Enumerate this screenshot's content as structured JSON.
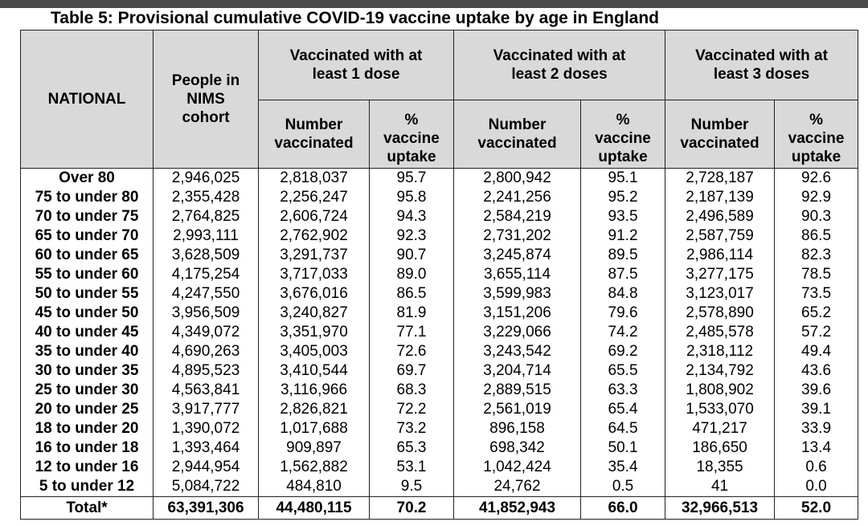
{
  "title": "Table 5: Provisional cumulative COVID-19 vaccine uptake by age in England",
  "headers": {
    "national": "NATIONAL",
    "cohort_line1": "People in",
    "cohort_line2": "NIMS",
    "cohort_line3": "cohort",
    "dose1_line1": "Vaccinated with at",
    "dose1_line2": "least 1 dose",
    "dose2_line1": "Vaccinated with at",
    "dose2_line2": "least 2 doses",
    "dose3_line1": "Vaccinated with at",
    "dose3_line2": "least 3 doses",
    "number_line1": "Number",
    "number_line2": "vaccinated",
    "pct_line1": "%",
    "pct_line2": "vaccine",
    "pct_line3": "uptake"
  },
  "rows": [
    {
      "age": "Over 80",
      "cohort": "2,946,025",
      "d1_num": "2,818,037",
      "d1_pct": "95.7",
      "d2_num": "2,800,942",
      "d2_pct": "95.1",
      "d3_num": "2,728,187",
      "d3_pct": "92.6"
    },
    {
      "age": "75 to under 80",
      "cohort": "2,355,428",
      "d1_num": "2,256,247",
      "d1_pct": "95.8",
      "d2_num": "2,241,256",
      "d2_pct": "95.2",
      "d3_num": "2,187,139",
      "d3_pct": "92.9"
    },
    {
      "age": "70 to under 75",
      "cohort": "2,764,825",
      "d1_num": "2,606,724",
      "d1_pct": "94.3",
      "d2_num": "2,584,219",
      "d2_pct": "93.5",
      "d3_num": "2,496,589",
      "d3_pct": "90.3"
    },
    {
      "age": "65 to under 70",
      "cohort": "2,993,111",
      "d1_num": "2,762,902",
      "d1_pct": "92.3",
      "d2_num": "2,731,202",
      "d2_pct": "91.2",
      "d3_num": "2,587,759",
      "d3_pct": "86.5"
    },
    {
      "age": "60 to under 65",
      "cohort": "3,628,509",
      "d1_num": "3,291,737",
      "d1_pct": "90.7",
      "d2_num": "3,245,874",
      "d2_pct": "89.5",
      "d3_num": "2,986,114",
      "d3_pct": "82.3"
    },
    {
      "age": "55 to under 60",
      "cohort": "4,175,254",
      "d1_num": "3,717,033",
      "d1_pct": "89.0",
      "d2_num": "3,655,114",
      "d2_pct": "87.5",
      "d3_num": "3,277,175",
      "d3_pct": "78.5"
    },
    {
      "age": "50 to under 55",
      "cohort": "4,247,550",
      "d1_num": "3,676,016",
      "d1_pct": "86.5",
      "d2_num": "3,599,983",
      "d2_pct": "84.8",
      "d3_num": "3,123,017",
      "d3_pct": "73.5"
    },
    {
      "age": "45 to under 50",
      "cohort": "3,956,509",
      "d1_num": "3,240,827",
      "d1_pct": "81.9",
      "d2_num": "3,151,206",
      "d2_pct": "79.6",
      "d3_num": "2,578,890",
      "d3_pct": "65.2"
    },
    {
      "age": "40 to under 45",
      "cohort": "4,349,072",
      "d1_num": "3,351,970",
      "d1_pct": "77.1",
      "d2_num": "3,229,066",
      "d2_pct": "74.2",
      "d3_num": "2,485,578",
      "d3_pct": "57.2"
    },
    {
      "age": "35 to under 40",
      "cohort": "4,690,263",
      "d1_num": "3,405,003",
      "d1_pct": "72.6",
      "d2_num": "3,243,542",
      "d2_pct": "69.2",
      "d3_num": "2,318,112",
      "d3_pct": "49.4"
    },
    {
      "age": "30 to under 35",
      "cohort": "4,895,523",
      "d1_num": "3,410,544",
      "d1_pct": "69.7",
      "d2_num": "3,204,714",
      "d2_pct": "65.5",
      "d3_num": "2,134,792",
      "d3_pct": "43.6"
    },
    {
      "age": "25 to under 30",
      "cohort": "4,563,841",
      "d1_num": "3,116,966",
      "d1_pct": "68.3",
      "d2_num": "2,889,515",
      "d2_pct": "63.3",
      "d3_num": "1,808,902",
      "d3_pct": "39.6"
    },
    {
      "age": "20 to under 25",
      "cohort": "3,917,777",
      "d1_num": "2,826,821",
      "d1_pct": "72.2",
      "d2_num": "2,561,019",
      "d2_pct": "65.4",
      "d3_num": "1,533,070",
      "d3_pct": "39.1"
    },
    {
      "age": "18 to under 20",
      "cohort": "1,390,072",
      "d1_num": "1,017,688",
      "d1_pct": "73.2",
      "d2_num": "896,158",
      "d2_pct": "64.5",
      "d3_num": "471,217",
      "d3_pct": "33.9"
    },
    {
      "age": "16 to under 18",
      "cohort": "1,393,464",
      "d1_num": "909,897",
      "d1_pct": "65.3",
      "d2_num": "698,342",
      "d2_pct": "50.1",
      "d3_num": "186,650",
      "d3_pct": "13.4"
    },
    {
      "age": "12 to under 16",
      "cohort": "2,944,954",
      "d1_num": "1,562,882",
      "d1_pct": "53.1",
      "d2_num": "1,042,424",
      "d2_pct": "35.4",
      "d3_num": "18,355",
      "d3_pct": "0.6"
    },
    {
      "age": "5 to under 12",
      "cohort": "5,084,722",
      "d1_num": "484,810",
      "d1_pct": "9.5",
      "d2_num": "24,762",
      "d2_pct": "0.5",
      "d3_num": "41",
      "d3_pct": "0.0"
    }
  ],
  "total": {
    "age": "Total*",
    "cohort": "63,391,306",
    "d1_num": "44,480,115",
    "d1_pct": "70.2",
    "d2_num": "41,852,943",
    "d2_pct": "66.0",
    "d3_num": "32,966,513",
    "d3_pct": "52.0"
  }
}
